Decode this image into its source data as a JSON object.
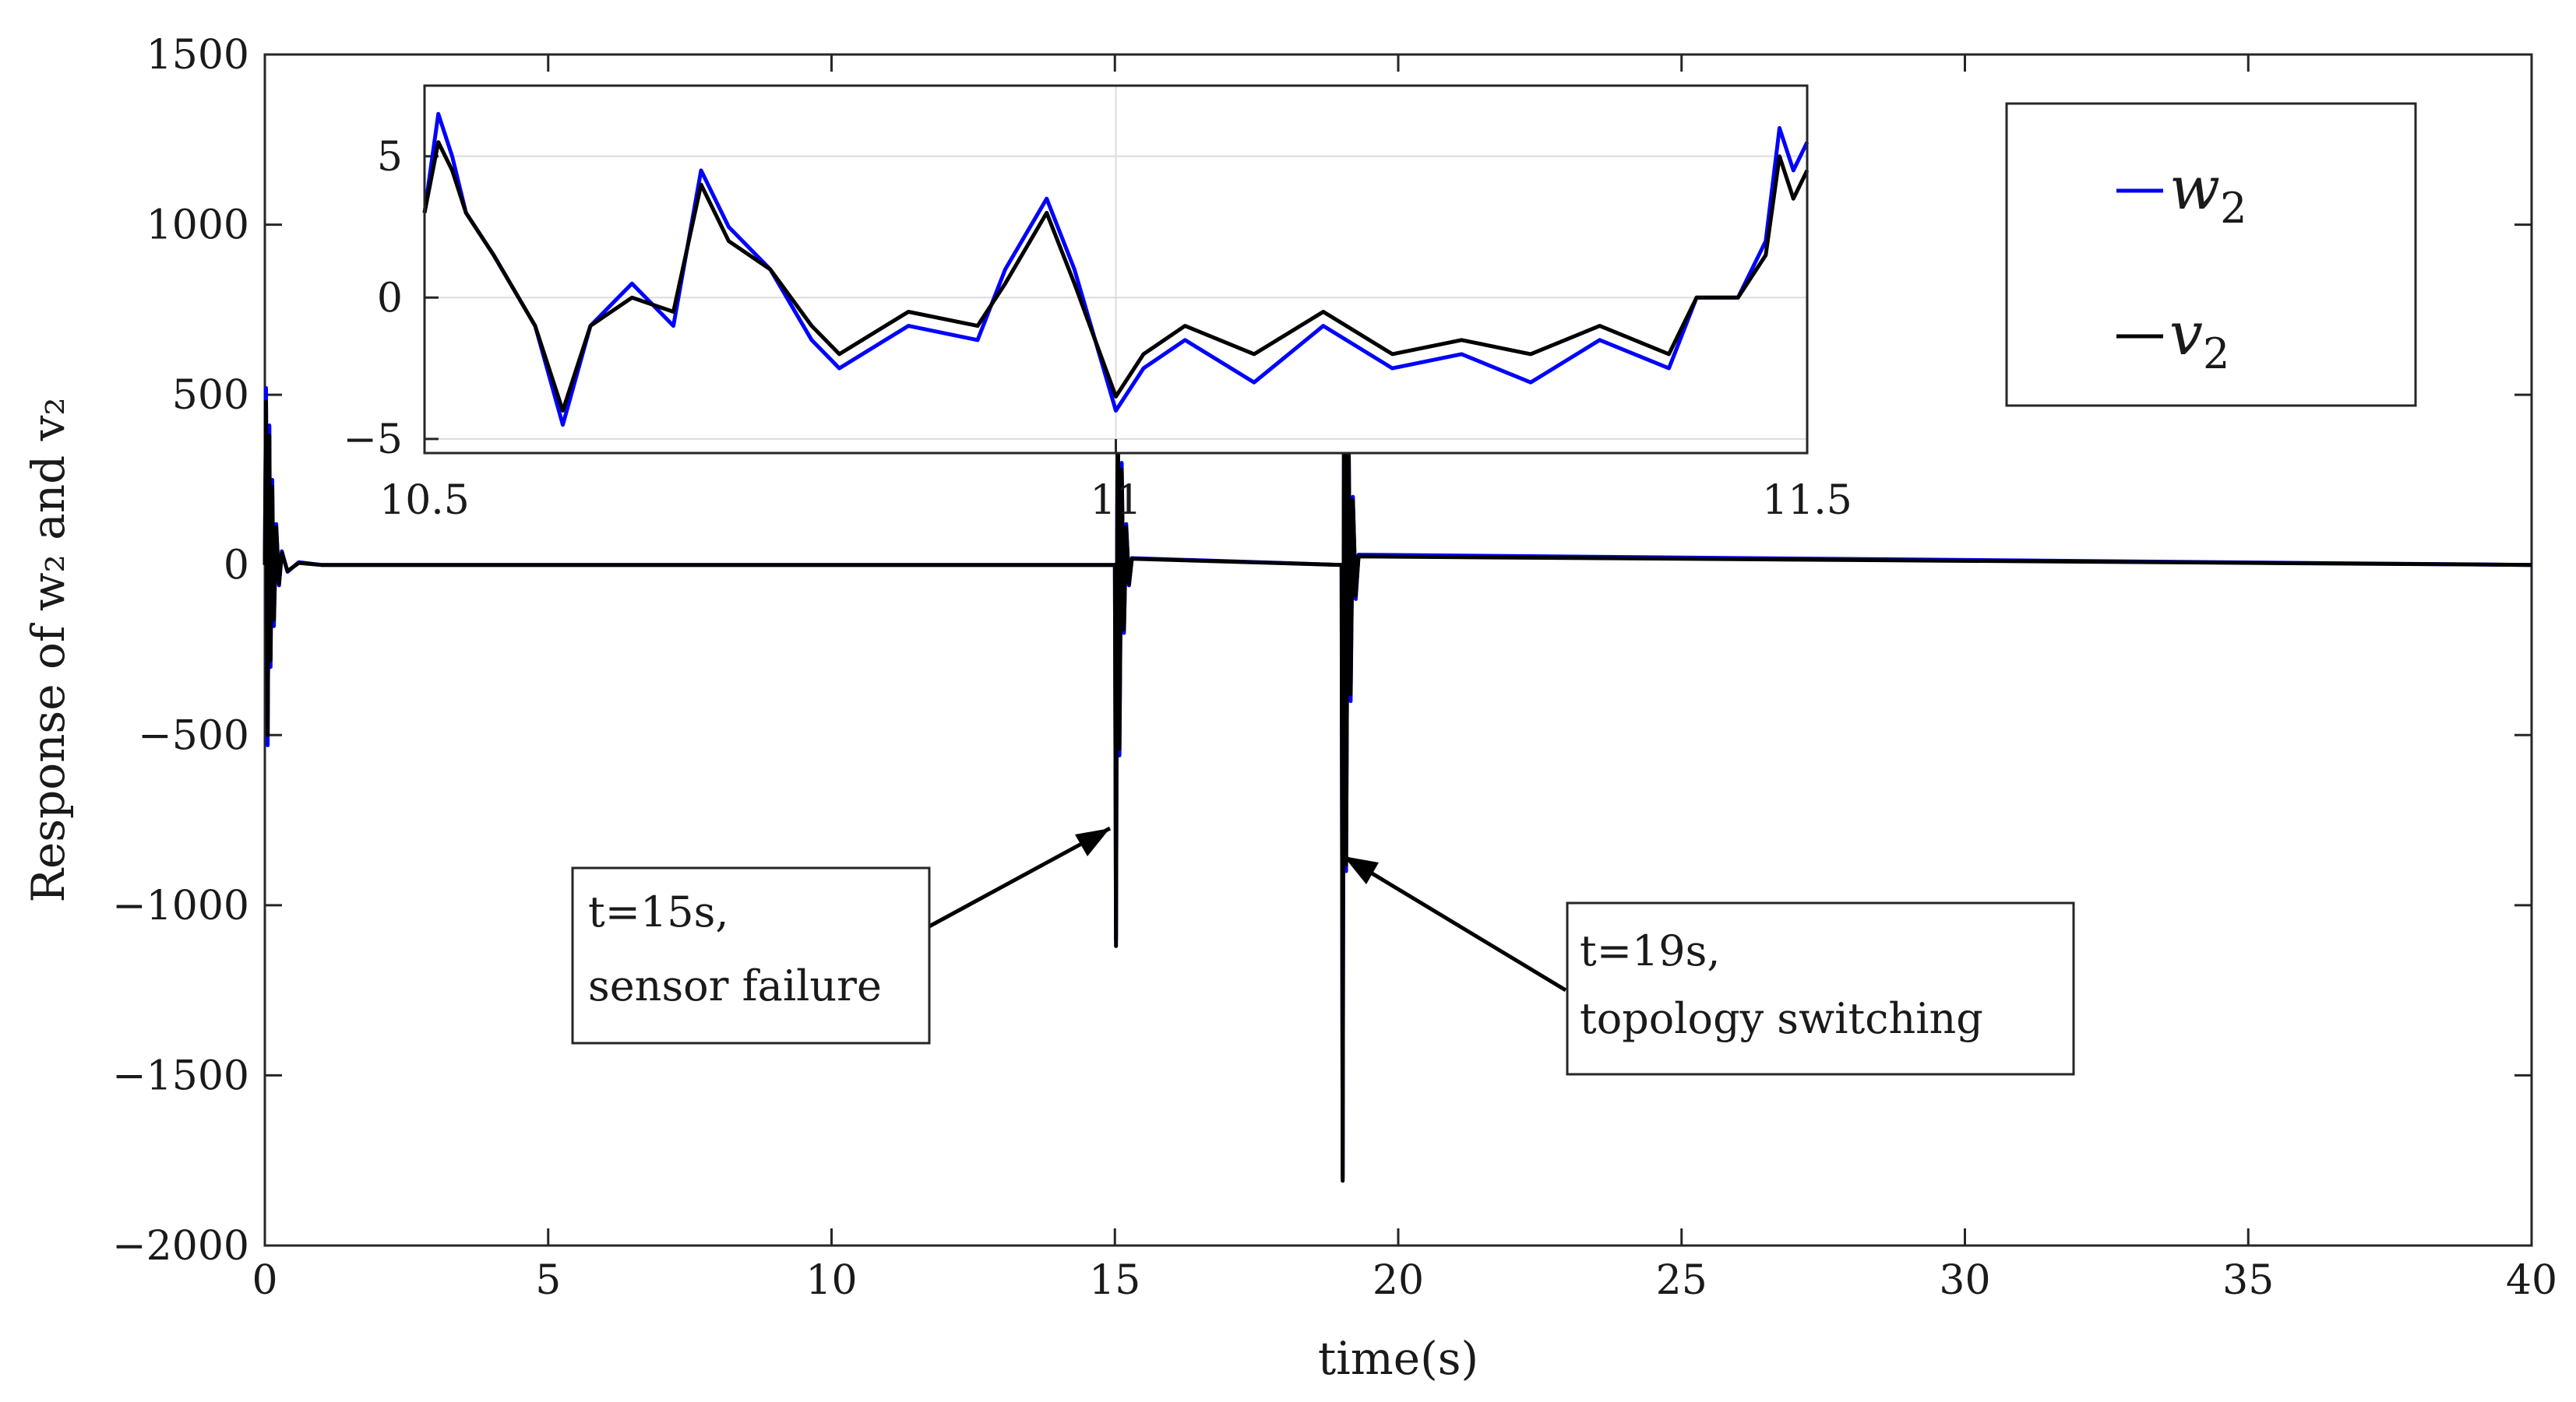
{
  "chart_data": [
    {
      "type": "line",
      "xlabel": "time(s)",
      "ylabel": "Response of w₂ and v₂",
      "xlim": [
        0,
        40
      ],
      "ylim": [
        -2000,
        1500
      ],
      "xticks": [
        "0",
        "5",
        "10",
        "15",
        "20",
        "25",
        "30",
        "35",
        "40"
      ],
      "yticks": [
        "1500",
        "1000",
        "500",
        "0",
        "−500",
        "−1000",
        "−1500",
        "−2000"
      ],
      "grid": false,
      "legend_placement": "top-right",
      "series": [
        {
          "name": "w₂",
          "color": "#0000ff",
          "x": [
            0,
            0.02,
            0.05,
            0.08,
            0.1,
            0.13,
            0.16,
            0.2,
            0.25,
            0.3,
            0.4,
            0.6,
            1,
            15,
            15.02,
            15.05,
            15.08,
            15.12,
            15.16,
            15.2,
            15.25,
            15.3,
            19,
            19.02,
            19.05,
            19.08,
            19.12,
            19.16,
            19.2,
            19.25,
            19.3,
            40
          ],
          "values": [
            0,
            520,
            -530,
            410,
            -300,
            250,
            -180,
            120,
            -60,
            40,
            -20,
            8,
            0,
            0,
            -1100,
            650,
            -560,
            300,
            -200,
            120,
            -60,
            20,
            0,
            -1800,
            1200,
            -900,
            500,
            -400,
            200,
            -100,
            30,
            0
          ]
        },
        {
          "name": "v₂",
          "color": "#000000",
          "x": [
            0,
            0.02,
            0.05,
            0.08,
            0.1,
            0.13,
            0.16,
            0.2,
            0.25,
            0.3,
            0.4,
            0.6,
            1,
            15,
            15.02,
            15.05,
            15.08,
            15.12,
            15.16,
            15.2,
            15.25,
            15.3,
            19,
            19.02,
            19.05,
            19.08,
            19.12,
            19.16,
            19.2,
            19.25,
            19.3,
            40
          ],
          "values": [
            0,
            480,
            -500,
            380,
            -280,
            230,
            -160,
            110,
            -55,
            35,
            -18,
            6,
            0,
            0,
            -1120,
            620,
            -540,
            280,
            -190,
            110,
            -55,
            18,
            0,
            -1810,
            1180,
            -880,
            480,
            -380,
            190,
            -90,
            25,
            0
          ]
        }
      ],
      "annotations": [
        {
          "line1": "t=15s,",
          "line2": "sensor failure",
          "x": 15,
          "y": -770
        },
        {
          "line1": "t=19s,",
          "line2": "topology switching",
          "x": 19,
          "y": -850
        }
      ]
    },
    {
      "type": "line",
      "title": "",
      "xlim": [
        10.5,
        11.5
      ],
      "ylim": [
        -5.5,
        7.5
      ],
      "xticks": [
        "10.5",
        "11",
        "11.5"
      ],
      "yticks": [
        "5",
        "0",
        "−5"
      ],
      "grid": true,
      "series": [
        {
          "name": "w₂",
          "color": "#0000ff",
          "x": [
            10.5,
            10.51,
            10.52,
            10.53,
            10.55,
            10.58,
            10.6,
            10.62,
            10.65,
            10.68,
            10.7,
            10.72,
            10.75,
            10.78,
            10.8,
            10.85,
            10.9,
            10.92,
            10.95,
            10.97,
            11,
            11.02,
            11.05,
            11.1,
            11.15,
            11.2,
            11.25,
            11.3,
            11.35,
            11.4,
            11.42,
            11.45,
            11.47,
            11.48,
            11.49,
            11.5
          ],
          "values": [
            3,
            6.5,
            5,
            3,
            1.5,
            -1,
            -4.5,
            -1,
            0.5,
            -1,
            4.5,
            2.5,
            1,
            -1.5,
            -2.5,
            -1,
            -1.5,
            1,
            3.5,
            1,
            -4,
            -2.5,
            -1.5,
            -3,
            -1,
            -2.5,
            -2,
            -3,
            -1.5,
            -2.5,
            0,
            0,
            2,
            6,
            4.5,
            5.5
          ]
        },
        {
          "name": "v₂",
          "color": "#000000",
          "x": [
            10.5,
            10.51,
            10.52,
            10.53,
            10.55,
            10.58,
            10.6,
            10.62,
            10.65,
            10.68,
            10.7,
            10.72,
            10.75,
            10.78,
            10.8,
            10.85,
            10.9,
            10.92,
            10.95,
            10.97,
            11,
            11.02,
            11.05,
            11.1,
            11.15,
            11.2,
            11.25,
            11.3,
            11.35,
            11.4,
            11.42,
            11.45,
            11.47,
            11.48,
            11.49,
            11.5
          ],
          "values": [
            3,
            5.5,
            4.5,
            3,
            1.5,
            -1,
            -4,
            -1,
            0,
            -0.5,
            4,
            2,
            1,
            -1,
            -2,
            -0.5,
            -1,
            0.5,
            3,
            0.5,
            -3.5,
            -2,
            -1,
            -2,
            -0.5,
            -2,
            -1.5,
            -2,
            -1,
            -2,
            0,
            0,
            1.5,
            5,
            3.5,
            4.5
          ]
        }
      ]
    }
  ],
  "legend": [
    {
      "symbol": "w",
      "sub": "2",
      "color": "#0000ff"
    },
    {
      "symbol": "v",
      "sub": "2",
      "color": "#000000"
    }
  ]
}
